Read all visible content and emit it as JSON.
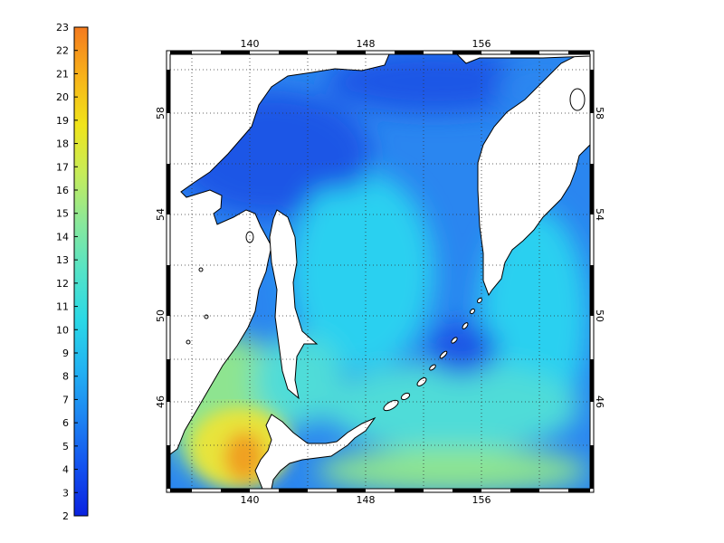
{
  "colorbar": {
    "labels": [
      "2",
      "3",
      "4",
      "5",
      "6",
      "7",
      "8",
      "9",
      "10",
      "11",
      "12",
      "13",
      "14",
      "15",
      "16",
      "17",
      "18",
      "19",
      "20",
      "21",
      "22",
      "23"
    ],
    "stops": [
      "#0a22e0",
      "#1352ef",
      "#1d84f2",
      "#22b2f2",
      "#2ad8e6",
      "#54e3c7",
      "#8ae89a",
      "#c6ec5a",
      "#f0e41a",
      "#f8b21a",
      "#f47a1e"
    ]
  },
  "map": {
    "lon_top_labels": [
      "140",
      "148",
      "156"
    ],
    "lon_bottom_labels": [
      "140",
      "148",
      "156"
    ],
    "lat_left_labels": [
      "58",
      "54",
      "50",
      "46"
    ],
    "lat_right_labels": [
      "58",
      "54",
      "50",
      "46"
    ],
    "colors": {
      "deep_blue": "#1a56e6",
      "mid_blue": "#2a86f0",
      "cyan": "#2ad0f0",
      "teal": "#50dcd8",
      "green": "#8ee490",
      "yellow": "#e8e43a",
      "orange": "#f0a020",
      "land": "#ffffff"
    }
  }
}
